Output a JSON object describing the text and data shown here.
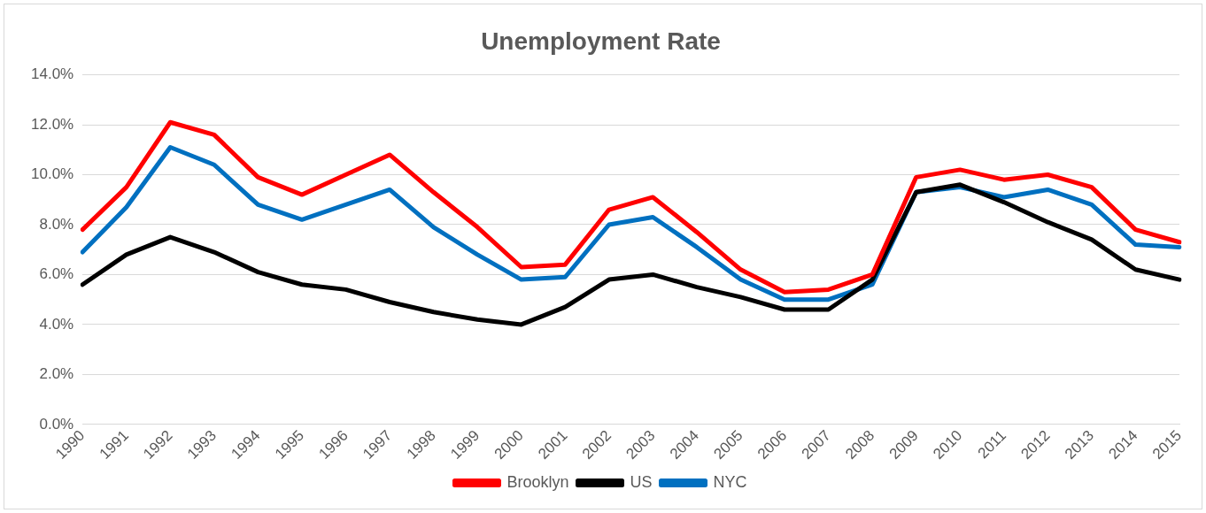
{
  "chart_data": {
    "type": "line",
    "title": "Unemployment Rate",
    "categories": [
      "1990",
      "1991",
      "1992",
      "1993",
      "1994",
      "1995",
      "1996",
      "1997",
      "1998",
      "1999",
      "2000",
      "2001",
      "2002",
      "2003",
      "2004",
      "2005",
      "2006",
      "2007",
      "2008",
      "2009",
      "2010",
      "2011",
      "2012",
      "2013",
      "2014",
      "2015"
    ],
    "series": [
      {
        "name": "Brooklyn",
        "color": "#ff0000",
        "values": [
          7.8,
          9.5,
          12.1,
          11.6,
          9.9,
          9.2,
          10.0,
          10.8,
          9.3,
          7.9,
          6.3,
          6.4,
          8.6,
          9.1,
          7.7,
          6.2,
          5.3,
          5.4,
          6.0,
          9.9,
          10.2,
          9.8,
          10.0,
          9.5,
          7.8,
          7.3
        ]
      },
      {
        "name": "US",
        "color": "#000000",
        "values": [
          5.6,
          6.8,
          7.5,
          6.9,
          6.1,
          5.6,
          5.4,
          4.9,
          4.5,
          4.2,
          4.0,
          4.7,
          5.8,
          6.0,
          5.5,
          5.1,
          4.6,
          4.6,
          5.8,
          9.3,
          9.6,
          8.9,
          8.1,
          7.4,
          6.2,
          5.8
        ]
      },
      {
        "name": "NYC",
        "color": "#0070c0",
        "values": [
          6.9,
          8.7,
          11.1,
          10.4,
          8.8,
          8.2,
          8.8,
          9.4,
          7.9,
          6.8,
          5.8,
          5.9,
          8.0,
          8.3,
          7.1,
          5.8,
          5.0,
          5.0,
          5.6,
          9.3,
          9.5,
          9.1,
          9.4,
          8.8,
          7.2,
          7.1
        ]
      }
    ],
    "ylim": [
      0,
      14
    ],
    "yticks": [
      {
        "value": 0,
        "label": "0.0%"
      },
      {
        "value": 2,
        "label": "2.0%"
      },
      {
        "value": 4,
        "label": "4.0%"
      },
      {
        "value": 6,
        "label": "6.0%"
      },
      {
        "value": 8,
        "label": "8.0%"
      },
      {
        "value": 10,
        "label": "10.0%"
      },
      {
        "value": 12,
        "label": "12.0%"
      },
      {
        "value": 14,
        "label": "14.0%"
      }
    ],
    "grid": "y",
    "legend": "bottom",
    "marker": "none",
    "line_style": "solid"
  }
}
